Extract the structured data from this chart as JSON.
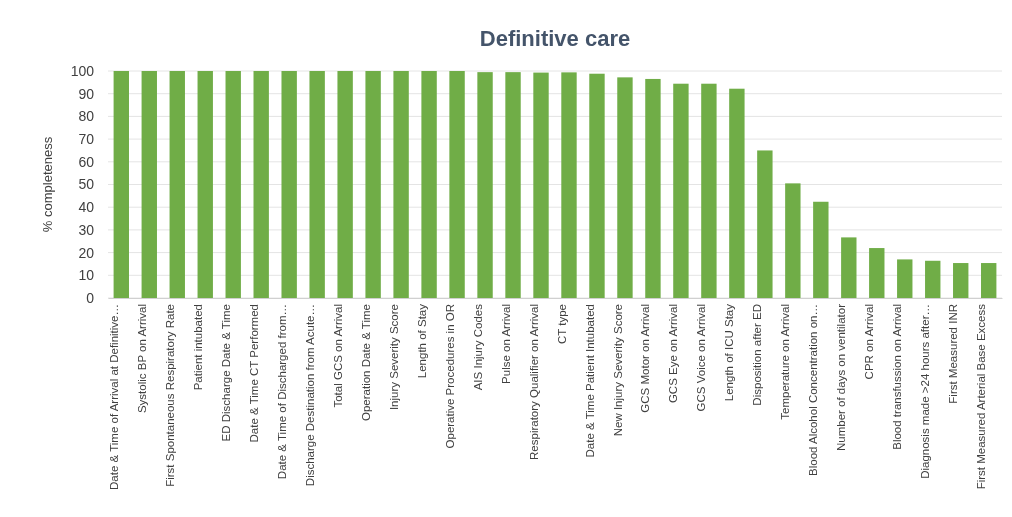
{
  "chart_data": {
    "type": "bar",
    "title": "Definitive care",
    "ylabel": "% completeness",
    "categories": [
      "Date & Time of Arrival at Definitive…",
      "Systolic BP on Arrival",
      "First Spontaneous Respiratory Rate",
      "Patient intubated",
      "ED Discharge Date & Time",
      "Date & Time CT Performed",
      "Date & Time of Discharged from…",
      "Discharge Destination from Acute…",
      "Total GCS on Arrival",
      "Operation Date & Time",
      "Injury Severity Score",
      "Length of Stay",
      "Operative Procedures in OR",
      "AIS Injury Codes",
      "Pulse on Arrival",
      "Respiratory Qualifier on Arrival",
      "CT type",
      "Date & Time Patient Intubated",
      "New Injury Severity Score",
      "GCS Motor on Arrival",
      "GCS Eye on Arrival",
      "GCS Voice on Arrival",
      "Length of ICU Stay",
      "Disposition after ED",
      "Temperature on Arrival",
      "Blood Alcohol Concentration on…",
      "Number of days on ventilator",
      "CPR on Arrival",
      "Blood transfussion on Arrival",
      "Diagnosis made >24 hours after…",
      "First Measured INR",
      "First Measured Arterial Base Excess"
    ],
    "values": [
      100,
      100,
      100,
      100,
      100,
      100,
      100,
      100,
      100,
      100,
      100,
      100,
      100,
      99.5,
      99.5,
      99.3,
      99.4,
      98.8,
      97.2,
      96.5,
      94.4,
      94.4,
      92.2,
      65,
      50.5,
      42.4,
      26.7,
      22,
      17,
      16.4,
      15.4,
      15.4
    ],
    "color": "#70ad47",
    "ylim": [
      0,
      100
    ],
    "yticks": [
      0,
      10,
      20,
      30,
      40,
      50,
      60,
      70,
      80,
      90,
      100
    ],
    "grid": "y"
  }
}
